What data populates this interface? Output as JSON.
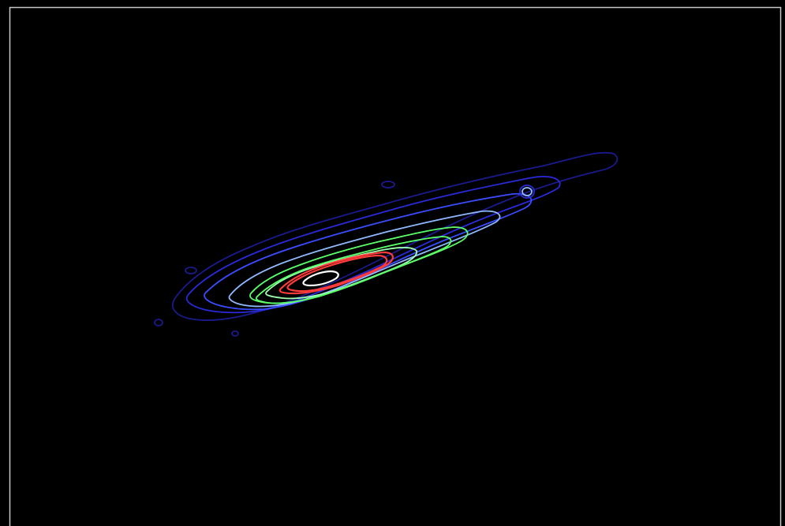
{
  "image": {
    "background_color": "#000000",
    "frame_color": "#c8c8c8",
    "subject": "contour-map",
    "contour_levels": [
      {
        "level": 1,
        "color": "#1a1a8c"
      },
      {
        "level": 2,
        "color": "#2a2ad8"
      },
      {
        "level": 3,
        "color": "#3a4cff"
      },
      {
        "level": 4,
        "color": "#8fb8ff"
      },
      {
        "level": 5,
        "color": "#5aff6a"
      },
      {
        "level": 6,
        "color": "#9dffb0"
      },
      {
        "level": 7,
        "color": "#ff3b3b"
      },
      {
        "level": 8,
        "color": "#ffffff"
      }
    ]
  }
}
